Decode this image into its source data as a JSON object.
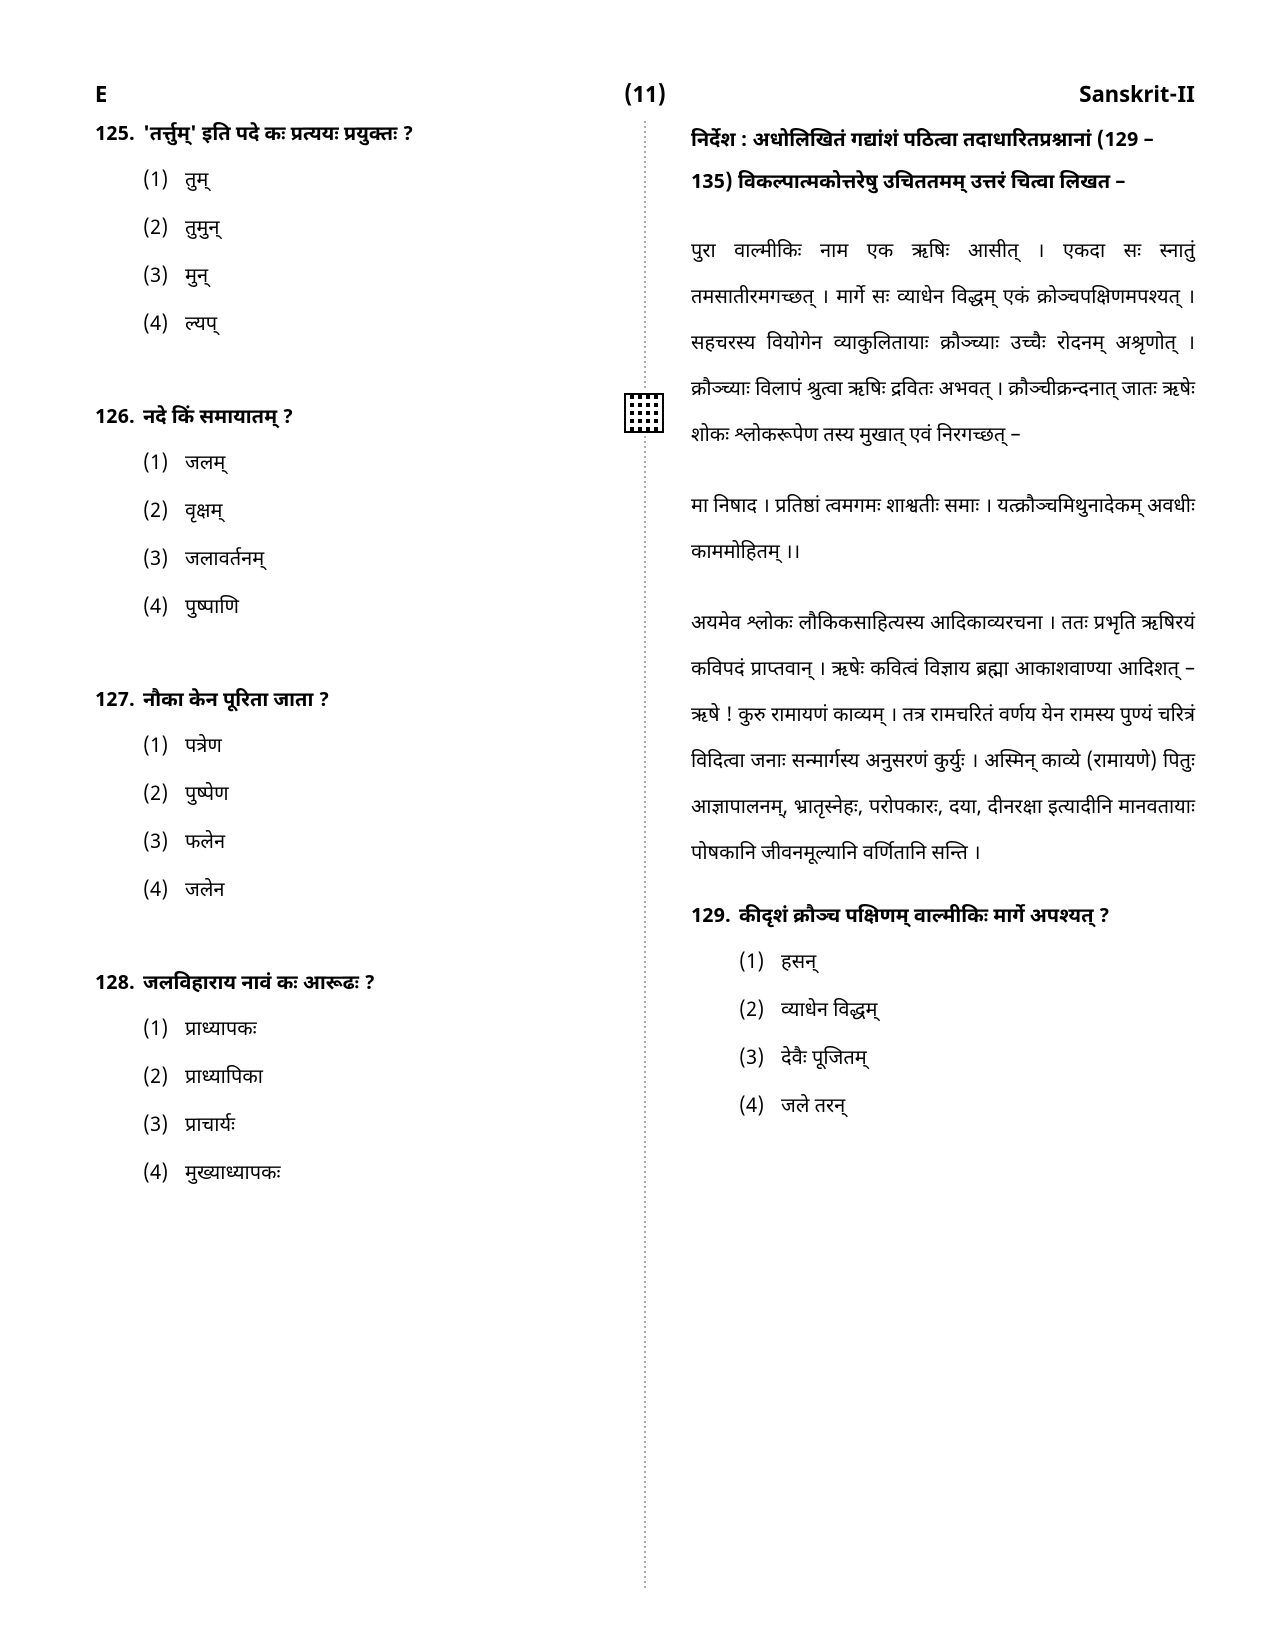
{
  "header": {
    "set_code": "E",
    "page_num": "(11)",
    "subject": "Sanskrit-II"
  },
  "left": {
    "q125": {
      "num": "125.",
      "text": "'तर्त्तुम्' इति पदे कः प्रत्ययः प्रयुक्तः ?",
      "opts": {
        "n1": "(1)",
        "t1": "तुम्",
        "n2": "(2)",
        "t2": "तुमुन्",
        "n3": "(3)",
        "t3": "मुन्",
        "n4": "(4)",
        "t4": "ल्यप्"
      }
    },
    "q126": {
      "num": "126.",
      "text": "नदे किं समायातम् ?",
      "opts": {
        "n1": "(1)",
        "t1": "जलम्",
        "n2": "(2)",
        "t2": "वृक्षम्",
        "n3": "(3)",
        "t3": "जलावर्तनम्",
        "n4": "(4)",
        "t4": "पुष्पाणि"
      }
    },
    "q127": {
      "num": "127.",
      "text": "नौका केन पूरिता जाता ?",
      "opts": {
        "n1": "(1)",
        "t1": "पत्रेण",
        "n2": "(2)",
        "t2": "पुष्पेण",
        "n3": "(3)",
        "t3": "फलेन",
        "n4": "(4)",
        "t4": "जलेन"
      }
    },
    "q128": {
      "num": "128.",
      "text": "जलविहाराय नावं कः आरूढः ?",
      "opts": {
        "n1": "(1)",
        "t1": "प्राध्यापकः",
        "n2": "(2)",
        "t2": "प्राध्यापिका",
        "n3": "(3)",
        "t3": "प्राचार्यः",
        "n4": "(4)",
        "t4": "मुख्याध्यापकः"
      }
    }
  },
  "right": {
    "nirdesh": "निर्देश : अधोलिखितं गद्यांशं पठित्वा तदाधारितप्रश्नानां (129 – 135) विकल्पात्मकोत्तरेषु उचिततमम् उत्तरं चित्वा लिखत –",
    "passage": {
      "p1": "पुरा वाल्मीकिः नाम एक ऋषिः आसीत् । एकदा सः स्नातुं तमसातीरमगच्छत् । मार्गे सः व्याधेन विद्धम् एकं क्रोञ्चपक्षिणमपश्यत् । सहचरस्य वियोगेन व्याकुलितायाः क्रौञ्च्याः उच्चैः रोदनम् अश्रृणोत् । क्रौञ्च्याः विलापं श्रुत्वा ऋषिः द्रवितः अभवत् । क्रौञ्चीक्रन्दनात् जातः ऋषेः शोकः श्लोकरूपेण तस्य मुखात् एवं निरगच्छत् –",
      "p2": "मा निषाद । प्रतिष्ठां त्वमगमः शाश्वतीः समाः । यत्क्रौञ्चमिथुनादेकम् अवधीः काममोहितम् ।।",
      "p3": "अयमेव श्लोकः लौकिकसाहित्यस्य आदिकाव्यरचना । ततः प्रभृति ऋषिरयं कविपदं प्राप्तवान् । ऋषेः कवित्वं विज्ञाय ब्रह्मा आकाशवाण्या आदिशत् – ऋषे ! कुरु रामायणं काव्यम् । तत्र रामचरितं वर्णय येन रामस्य पुण्यं चरित्रं विदित्वा जनाः सन्मार्गस्य अनुसरणं कुर्युः । अस्मिन् काव्ये (रामायणे) पितुः आज्ञापालनम्, भ्रातृस्नेहः, परोपकारः, दया, दीनरक्षा इत्यादीनि मानवतायाः पोषकानि जीवनमूल्यानि वर्णितानि सन्ति ।"
    },
    "q129": {
      "num": "129.",
      "text": "कीदृशं क्रौञ्च पक्षिणम् वाल्मीकिः मार्गे अपश्यत् ?",
      "opts": {
        "n1": "(1)",
        "t1": "हसन्",
        "n2": "(2)",
        "t2": "व्याधेन विद्धम्",
        "n3": "(3)",
        "t3": "देवैः पूजितम्",
        "n4": "(4)",
        "t4": "जले तरन्"
      }
    }
  }
}
